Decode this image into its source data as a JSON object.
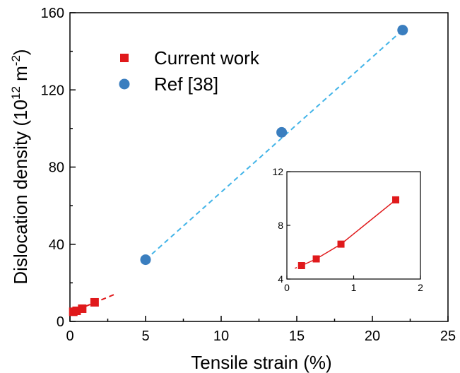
{
  "chart_data": [
    {
      "type": "scatter",
      "title": "",
      "xlabel": "Tensile strain (%)",
      "ylabel": {
        "main": "Dislocation density (10",
        "exp1": "12",
        "mid": " m",
        "exp2": "-2",
        "end": ")"
      },
      "xlim": [
        0,
        25
      ],
      "ylim": [
        0,
        160
      ],
      "x_ticks": [
        0,
        5,
        10,
        15,
        20,
        25
      ],
      "y_ticks": [
        0,
        40,
        80,
        120,
        160
      ],
      "grid": false,
      "legend_placement": "top-left",
      "series": [
        {
          "name": "Current work",
          "marker": "square",
          "color": "#e0191b",
          "x": [
            0.22,
            0.44,
            0.81,
            1.63
          ],
          "y": [
            5.0,
            5.5,
            6.6,
            9.9
          ],
          "trend_line": {
            "style": "dashed",
            "color": "#e0191b",
            "x": [
              0.0,
              3.1
            ],
            "y": [
              4.5,
              14.5
            ]
          }
        },
        {
          "name": "Ref [38]",
          "marker": "circle",
          "color": "#3a7ebf",
          "x": [
            5,
            14,
            22
          ],
          "y": [
            32,
            98,
            151
          ],
          "trend_line": {
            "style": "dashed",
            "color": "#42b4e8",
            "x": [
              5,
              22
            ],
            "y": [
              32,
              151
            ]
          }
        }
      ]
    },
    {
      "type": "line",
      "title": "",
      "xlabel": "",
      "ylabel": "",
      "xlim": [
        0,
        2
      ],
      "ylim": [
        4,
        12
      ],
      "x_ticks": [
        0,
        1,
        2
      ],
      "y_ticks": [
        4,
        8,
        12
      ],
      "grid": false,
      "series": [
        {
          "marker": "square",
          "color": "#e0191b",
          "x": [
            0.22,
            0.44,
            0.81,
            1.63
          ],
          "y": [
            5.0,
            5.5,
            6.6,
            9.9
          ],
          "line_style": "solid",
          "lead_in": {
            "style": "dashed",
            "x": [
              0.12,
              0.22
            ],
            "y": [
              4.8,
              5.0
            ]
          }
        }
      ]
    }
  ]
}
